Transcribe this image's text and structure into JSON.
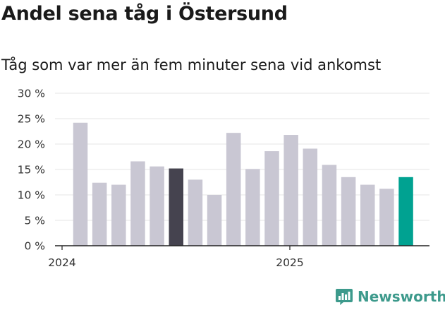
{
  "header": {
    "title": "Andel sena tåg i Östersund",
    "subtitle": "Tåg som var mer än fem minuter sena vid ankomst"
  },
  "chart_data": {
    "type": "bar",
    "title": "Andel sena tåg i Östersund",
    "subtitle": "Tåg som var mer än fem minuter sena vid ankomst",
    "xlabel": "",
    "ylabel": "",
    "ylim": [
      0,
      30
    ],
    "y_ticks": [
      0,
      5,
      10,
      15,
      20,
      25,
      30
    ],
    "y_tick_labels": [
      "0 %",
      "5 %",
      "10 %",
      "15 %",
      "20 %",
      "25 %",
      "30 %"
    ],
    "x_tick_labels": [
      {
        "label": "2024",
        "at_index": 0
      },
      {
        "label": "2025",
        "at_index": 12
      }
    ],
    "grid": true,
    "legend": "none",
    "values": [
      24.2,
      12.4,
      12.0,
      16.6,
      15.6,
      15.2,
      13.0,
      10.0,
      22.2,
      15.1,
      18.6,
      21.8,
      19.1,
      15.9,
      13.5,
      12.0,
      11.2,
      13.5
    ],
    "colors": {
      "default": "#c9c7d3",
      "highlight_dark": "#45434f",
      "highlight_teal": "#00a291"
    },
    "bar_colors": [
      "default",
      "default",
      "default",
      "default",
      "default",
      "highlight_dark",
      "default",
      "default",
      "default",
      "default",
      "default",
      "default",
      "default",
      "default",
      "default",
      "default",
      "default",
      "highlight_teal"
    ]
  },
  "brand": {
    "name": "Newsworthy",
    "color": "#3d9a8c",
    "icon": "bar-chart-bubble-icon"
  }
}
